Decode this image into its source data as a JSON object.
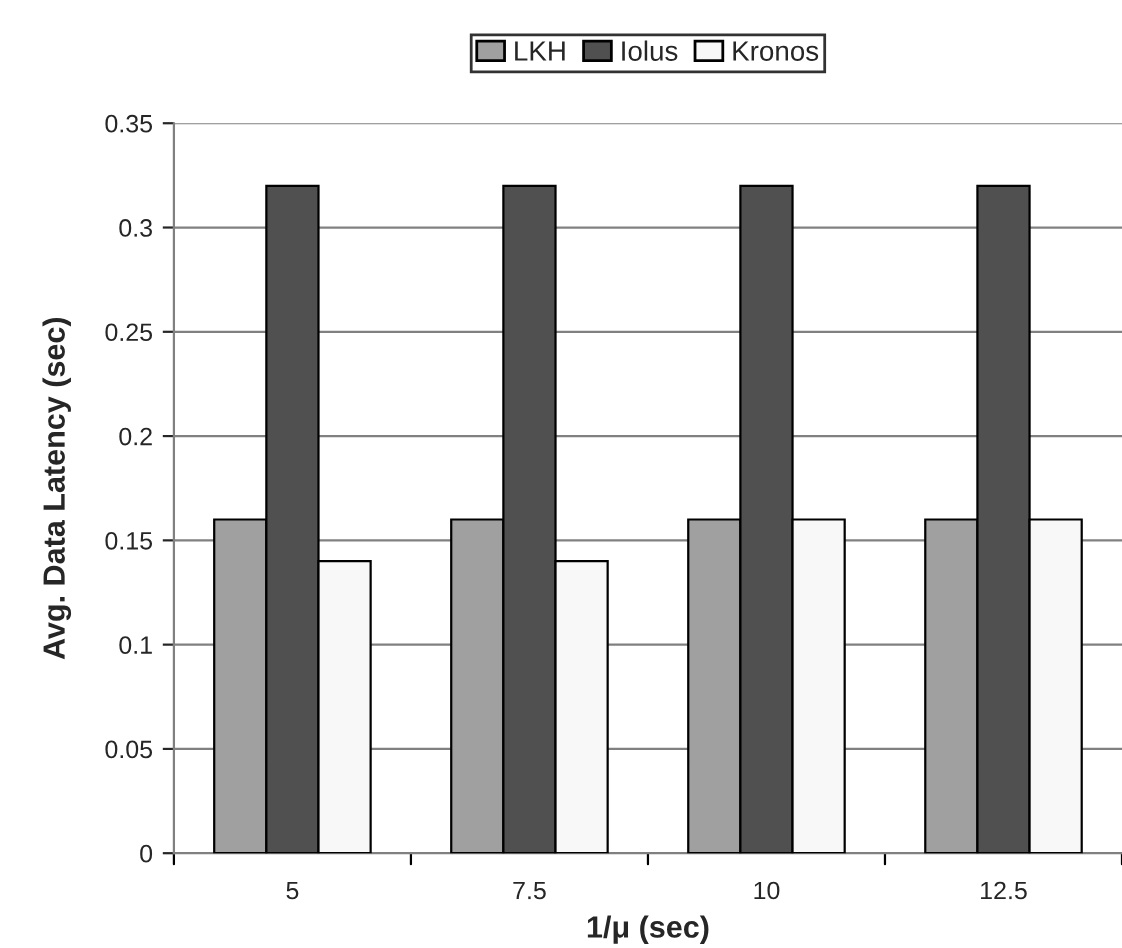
{
  "chart_data": {
    "type": "bar",
    "xlabel": "1/μ (sec)",
    "ylabel": "Avg. Data Latency (sec)",
    "categories": [
      "5",
      "7.5",
      "10",
      "12.5"
    ],
    "series": [
      {
        "name": "LKH",
        "color": "#a0a0a0",
        "values": [
          0.16,
          0.16,
          0.16,
          0.16
        ]
      },
      {
        "name": "Iolus",
        "color": "#505050",
        "values": [
          0.32,
          0.32,
          0.32,
          0.32
        ]
      },
      {
        "name": "Kronos",
        "color": "#f8f8f8",
        "values": [
          0.14,
          0.14,
          0.16,
          0.16
        ]
      }
    ],
    "ylim": [
      0,
      0.35
    ],
    "yticks": [
      0,
      0.05,
      0.1,
      0.15,
      0.2,
      0.25,
      0.3,
      0.35
    ],
    "grid": "y",
    "legend": "top"
  }
}
